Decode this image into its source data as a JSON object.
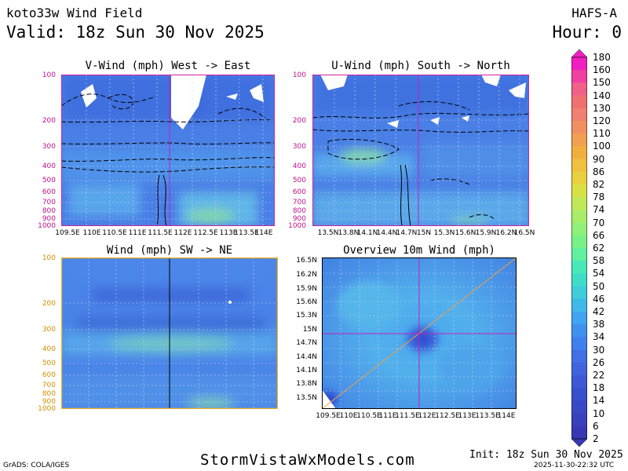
{
  "header": {
    "storm_title": "koto33w Wind Field",
    "valid_line": "Valid: 18z Sun 30 Nov 2025",
    "model": "HAFS-A",
    "hour": "Hour: 0"
  },
  "panels": {
    "top_left": {
      "title": "V-Wind (mph) West -> East",
      "frame_color": "#d020a0",
      "y_ticks": [
        "100",
        "200",
        "300",
        "400",
        "500",
        "600",
        "700",
        "800",
        "900",
        "1000"
      ],
      "x_ticks": [
        "109.5E",
        "110E",
        "110.5E",
        "111E",
        "111.5E",
        "112E",
        "112.5E",
        "113E",
        "113.5E",
        "114E"
      ]
    },
    "top_right": {
      "title": "U-Wind (mph) South -> North",
      "frame_color": "#d020a0",
      "y_ticks": [
        "100",
        "200",
        "300",
        "400",
        "500",
        "600",
        "700",
        "800",
        "900",
        "1000"
      ],
      "x_ticks": [
        "13.5N",
        "13.8N",
        "14.1N",
        "14.4N",
        "14.7N",
        "15N",
        "15.3N",
        "15.6N",
        "15.9N",
        "16.2N",
        "16.5N"
      ]
    },
    "bottom_left": {
      "title": "Wind (mph) SW -> NE",
      "frame_color": "#f0b020",
      "y_ticks": [
        "100",
        "200",
        "300",
        "400",
        "500",
        "600",
        "700",
        "800",
        "900",
        "1000"
      ]
    },
    "bottom_right": {
      "title": "Overview 10m Wind (mph)",
      "frame_color": "#000000",
      "y_ticks": [
        "16.5N",
        "16.2N",
        "15.9N",
        "15.6N",
        "15.3N",
        "15N",
        "14.7N",
        "14.4N",
        "14.1N",
        "13.8N",
        "13.5N"
      ],
      "x_ticks": [
        "109.5E",
        "110E",
        "110.5E",
        "111E",
        "111.5E",
        "112E",
        "112.5E",
        "113E",
        "113.5E",
        "114E"
      ]
    }
  },
  "colorbar": {
    "labels": [
      "180",
      "160",
      "150",
      "140",
      "130",
      "120",
      "110",
      "100",
      "90",
      "86",
      "82",
      "78",
      "74",
      "70",
      "66",
      "62",
      "58",
      "54",
      "50",
      "46",
      "42",
      "38",
      "34",
      "30",
      "26",
      "22",
      "18",
      "14",
      "10",
      "6",
      "2"
    ],
    "colors": [
      "#f020c0",
      "#f040a0",
      "#f06088",
      "#f07070",
      "#f08070",
      "#f09060",
      "#f0a050",
      "#f0b040",
      "#f0c040",
      "#e8d040",
      "#d8e048",
      "#c0e858",
      "#a8ec68",
      "#90f078",
      "#78f088",
      "#60f0a0",
      "#48e8b8",
      "#40dcc8",
      "#40ccd8",
      "#40b8e8",
      "#40a4f0",
      "#4090f0",
      "#4080ec",
      "#4070e4",
      "#4064dc",
      "#3c58d4",
      "#3850cc",
      "#3848c4",
      "#3840bc",
      "#3838b4"
    ]
  },
  "footer": {
    "grads": "GrADS: COLA/IGES",
    "website": "StormVistaWxModels.com",
    "init": "Init: 18z Sun 30 Nov 2025",
    "timestamp": "2025-11-30-22:32 UTC"
  }
}
